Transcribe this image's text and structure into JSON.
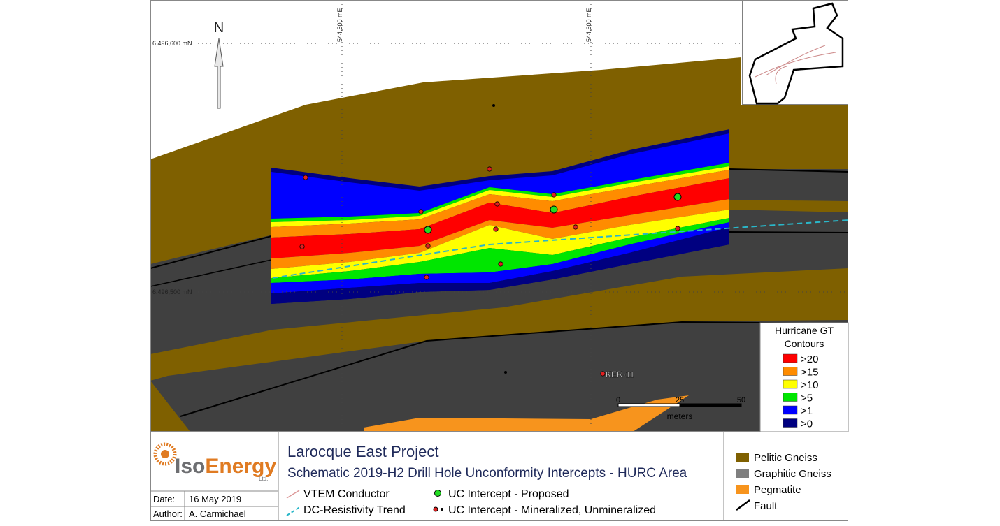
{
  "map": {
    "north": "N",
    "northing_labels": [
      "6,496,600 mN",
      "6,496,500 mN"
    ],
    "easting_labels": [
      "544,500 mE",
      "544,600 mE"
    ],
    "hole_label": "KER-11",
    "scale": {
      "ticks": [
        "0",
        "25",
        "50"
      ],
      "unit": "meters"
    }
  },
  "gt_legend": {
    "title": "Hurricane GT",
    "subtitle": "Contours",
    "items": [
      ">20",
      ">15",
      ">10",
      ">5",
      ">1",
      ">0"
    ]
  },
  "title_block": {
    "logo_part1": "Iso",
    "logo_part2": "Energy",
    "logo_suffix": "Ltd.",
    "date_label": "Date:",
    "date": "16 May 2019",
    "author_label": "Author:",
    "author": "A. Carmichael",
    "project": "Larocque East Project",
    "subtitle": "Schematic 2019-H2 Drill Hole Unconformity Intercepts - HURC Area",
    "symbols": [
      "VTEM Conductor",
      "DC-Resistivity Trend",
      "UC Intercept - Proposed",
      "UC Intercept - Mineralized, Unmineralized"
    ]
  },
  "lithology_legend": [
    "Pelitic Gneiss",
    "Graphitic Gneiss",
    "Pegmatite",
    "Fault"
  ]
}
